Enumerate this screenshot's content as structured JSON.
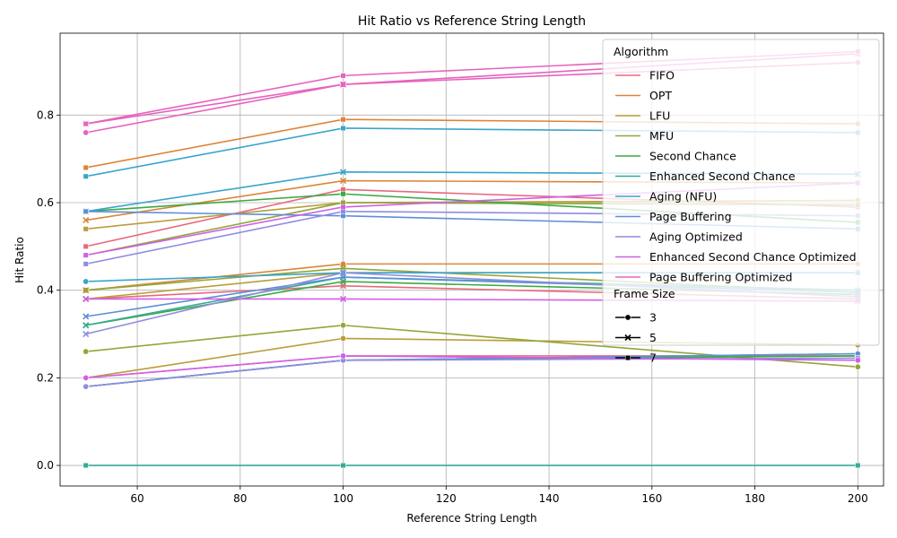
{
  "chart_data": {
    "type": "line",
    "title": "Hit Ratio vs Reference String Length",
    "xlabel": "Reference String Length",
    "ylabel": "Hit Ratio",
    "x": [
      50,
      100,
      200
    ],
    "xlim": [
      45,
      205
    ],
    "ylim": [
      -0.047,
      0.987
    ],
    "xticks": [
      60,
      80,
      100,
      120,
      140,
      160,
      180,
      200
    ],
    "xtick_labels": [
      "60",
      "80",
      "100",
      "120",
      "140",
      "160",
      "180",
      "200"
    ],
    "yticks": [
      0.0,
      0.2,
      0.4,
      0.6,
      0.8
    ],
    "ytick_labels": [
      "0.0",
      "0.2",
      "0.4",
      "0.6",
      "0.8"
    ],
    "grid": true,
    "legend_position": "top-right",
    "legend_title": "Algorithm",
    "style_legend_title": "Frame Size",
    "algorithms": [
      {
        "name": "FIFO",
        "color": "#e8697b"
      },
      {
        "name": "OPT",
        "color": "#dc8537"
      },
      {
        "name": "LFU",
        "color": "#bb9c3a"
      },
      {
        "name": "MFU",
        "color": "#93a636"
      },
      {
        "name": "Second Chance",
        "color": "#3ba944"
      },
      {
        "name": "Enhanced Second Chance",
        "color": "#36ab96"
      },
      {
        "name": "Aging (NFU)",
        "color": "#39a4cc"
      },
      {
        "name": "Page Buffering",
        "color": "#5d8fd6"
      },
      {
        "name": "Aging Optimized",
        "color": "#8f8ce0"
      },
      {
        "name": "Enhanced Second Chance Optimized",
        "color": "#d25fe8"
      },
      {
        "name": "Page Buffering Optimized",
        "color": "#e762be"
      }
    ],
    "frame_sizes": [
      {
        "label": "3",
        "marker": "circle"
      },
      {
        "label": "5",
        "marker": "x"
      },
      {
        "label": "7",
        "marker": "square"
      }
    ],
    "series": [
      {
        "algorithm": "FIFO",
        "frame_size": "3",
        "values": [
          0.2,
          0.25,
          0.25
        ]
      },
      {
        "algorithm": "FIFO",
        "frame_size": "5",
        "values": [
          0.38,
          0.41,
          0.38
        ]
      },
      {
        "algorithm": "FIFO",
        "frame_size": "7",
        "values": [
          0.5,
          0.63,
          0.59
        ]
      },
      {
        "algorithm": "OPT",
        "frame_size": "3",
        "values": [
          0.4,
          0.46,
          0.46
        ]
      },
      {
        "algorithm": "OPT",
        "frame_size": "5",
        "values": [
          0.56,
          0.65,
          0.645
        ]
      },
      {
        "algorithm": "OPT",
        "frame_size": "7",
        "values": [
          0.68,
          0.79,
          0.78
        ]
      },
      {
        "algorithm": "LFU",
        "frame_size": "3",
        "values": [
          0.2,
          0.29,
          0.275
        ]
      },
      {
        "algorithm": "LFU",
        "frame_size": "5",
        "values": [
          0.38,
          0.44,
          0.44
        ]
      },
      {
        "algorithm": "LFU",
        "frame_size": "7",
        "values": [
          0.54,
          0.6,
          0.605
        ]
      },
      {
        "algorithm": "MFU",
        "frame_size": "3",
        "values": [
          0.26,
          0.32,
          0.225
        ]
      },
      {
        "algorithm": "MFU",
        "frame_size": "5",
        "values": [
          0.4,
          0.45,
          0.395
        ]
      },
      {
        "algorithm": "MFU",
        "frame_size": "7",
        "values": [
          0.48,
          0.6,
          0.595
        ]
      },
      {
        "algorithm": "Second Chance",
        "frame_size": "3",
        "values": [
          0.18,
          0.24,
          0.25
        ]
      },
      {
        "algorithm": "Second Chance",
        "frame_size": "5",
        "values": [
          0.32,
          0.42,
          0.39
        ]
      },
      {
        "algorithm": "Second Chance",
        "frame_size": "7",
        "values": [
          0.58,
          0.62,
          0.555
        ]
      },
      {
        "algorithm": "Enhanced Second Chance",
        "frame_size": "3",
        "values": [
          0.18,
          0.24,
          0.255
        ]
      },
      {
        "algorithm": "Enhanced Second Chance",
        "frame_size": "5",
        "values": [
          0.32,
          0.43,
          0.4
        ]
      },
      {
        "algorithm": "Enhanced Second Chance",
        "frame_size": "7",
        "values": [
          0.0,
          0.0,
          0.0
        ]
      },
      {
        "algorithm": "Aging (NFU)",
        "frame_size": "3",
        "values": [
          0.42,
          0.44,
          0.44
        ]
      },
      {
        "algorithm": "Aging (NFU)",
        "frame_size": "5",
        "values": [
          0.58,
          0.67,
          0.665
        ]
      },
      {
        "algorithm": "Aging (NFU)",
        "frame_size": "7",
        "values": [
          0.66,
          0.77,
          0.76
        ]
      },
      {
        "algorithm": "Page Buffering",
        "frame_size": "3",
        "values": [
          0.18,
          0.24,
          0.255
        ]
      },
      {
        "algorithm": "Page Buffering",
        "frame_size": "5",
        "values": [
          0.34,
          0.43,
          0.395
        ]
      },
      {
        "algorithm": "Page Buffering",
        "frame_size": "7",
        "values": [
          0.58,
          0.57,
          0.54
        ]
      },
      {
        "algorithm": "Aging Optimized",
        "frame_size": "3",
        "values": [
          0.18,
          0.24,
          0.245
        ]
      },
      {
        "algorithm": "Aging Optimized",
        "frame_size": "5",
        "values": [
          0.3,
          0.44,
          0.385
        ]
      },
      {
        "algorithm": "Aging Optimized",
        "frame_size": "7",
        "values": [
          0.46,
          0.58,
          0.57
        ]
      },
      {
        "algorithm": "Enhanced Second Chance Optimized",
        "frame_size": "3",
        "values": [
          0.2,
          0.25,
          0.24
        ]
      },
      {
        "algorithm": "Enhanced Second Chance Optimized",
        "frame_size": "5",
        "values": [
          0.38,
          0.38,
          0.375
        ]
      },
      {
        "algorithm": "Enhanced Second Chance Optimized",
        "frame_size": "7",
        "values": [
          0.48,
          0.59,
          0.645
        ]
      },
      {
        "algorithm": "Page Buffering Optimized",
        "frame_size": "3",
        "values": [
          0.76,
          0.87,
          0.92
        ]
      },
      {
        "algorithm": "Page Buffering Optimized",
        "frame_size": "5",
        "values": [
          0.78,
          0.87,
          0.94
        ]
      },
      {
        "algorithm": "Page Buffering Optimized",
        "frame_size": "7",
        "values": [
          0.78,
          0.89,
          0.945
        ]
      }
    ]
  }
}
